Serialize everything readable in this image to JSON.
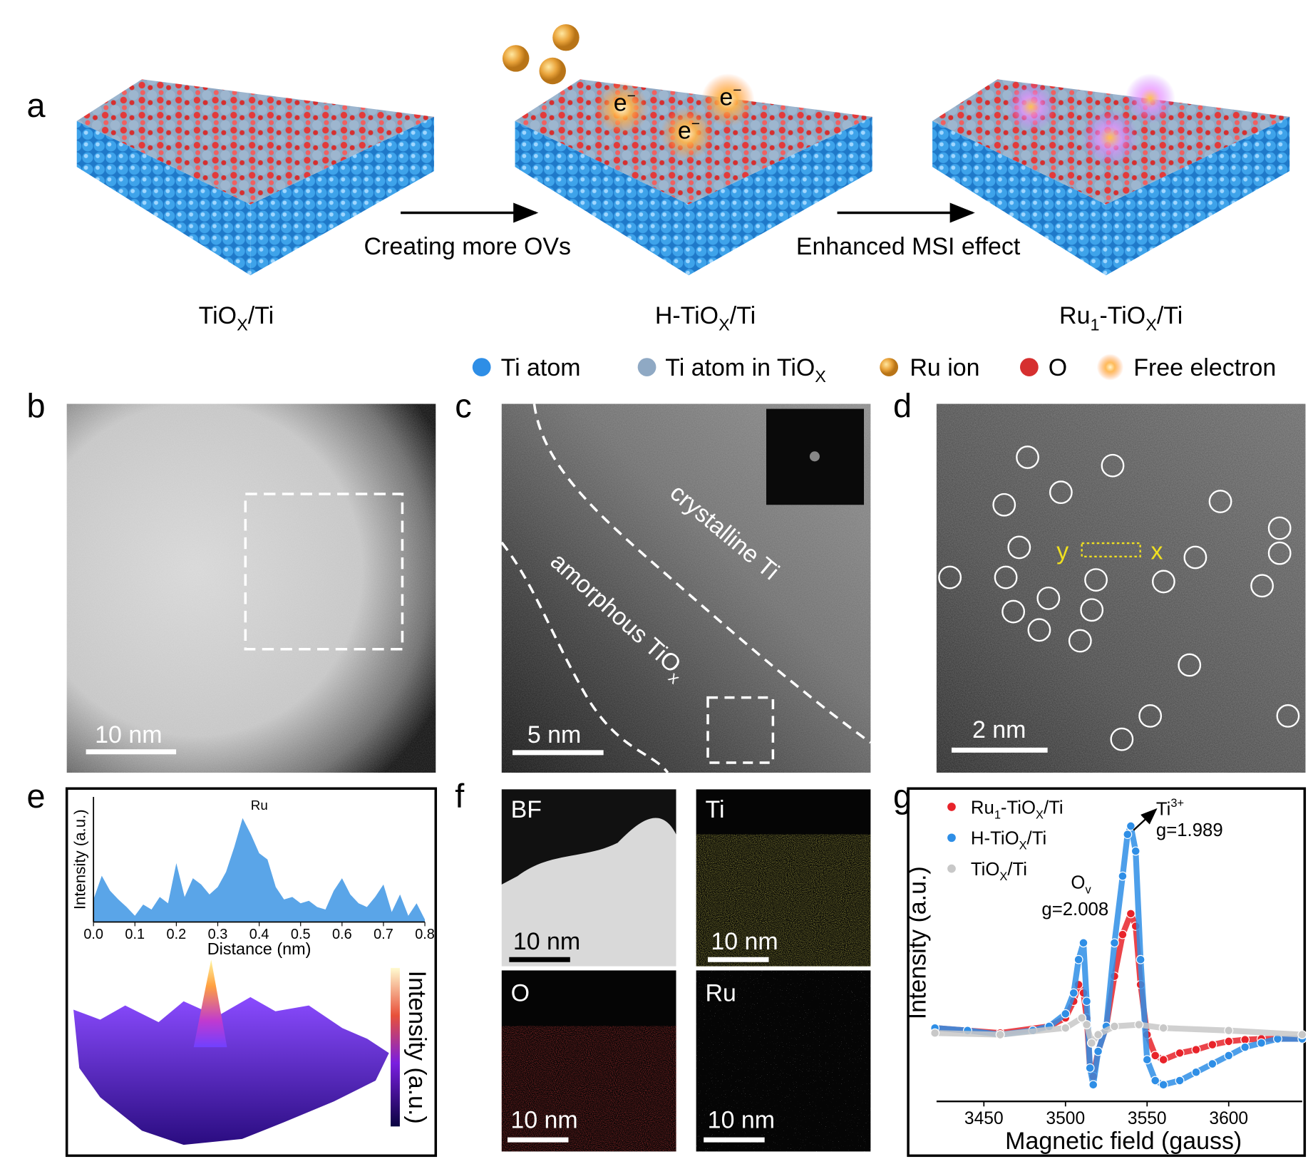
{
  "panel_labels": [
    "a",
    "b",
    "c",
    "d",
    "e",
    "f",
    "g"
  ],
  "panel_a": {
    "stages": [
      [
        "TiO",
        "X",
        "/Ti"
      ],
      [
        "H-TiO",
        "X",
        "/Ti"
      ],
      [
        "Ru",
        "1",
        "-TiO",
        "X",
        "/Ti"
      ]
    ],
    "arrows": [
      "Creating more OVs",
      "Enhanced MSI effect"
    ],
    "electron_labels": [
      [
        "e",
        "−"
      ],
      [
        "e",
        "−"
      ],
      [
        "e",
        "−"
      ]
    ]
  },
  "legend": [
    [
      "Ti atom"
    ],
    [
      "Ti atom in TiO",
      "X"
    ],
    [
      "Ru ion"
    ],
    [
      "O"
    ],
    [
      "Free electron"
    ]
  ],
  "panel_b": {
    "scale_bar": "10 nm"
  },
  "panel_c": {
    "scale_bar": "5 nm",
    "crystalline": "crystalline Ti",
    "amorphous": [
      "amorphous TiO",
      "x"
    ]
  },
  "panel_d": {
    "scale_bar": "2 nm",
    "markers": [
      "y",
      "x"
    ]
  },
  "panel_f": {
    "tiles": [
      {
        "label": "BF",
        "scale_bar": "10 nm"
      },
      {
        "label": "Ti",
        "scale_bar": "10 nm"
      },
      {
        "label": "O",
        "scale_bar": "10 nm"
      },
      {
        "label": "Ru",
        "scale_bar": "10 nm"
      }
    ]
  },
  "chart_data": [
    {
      "type": "area",
      "xlabel": "Distance (nm)",
      "ylabel": "Intensity (a.u.)",
      "annotation": "Ru",
      "colorbar_label": "Intensity (a.u.)",
      "color": "#5aa5e8",
      "xlim": [
        0,
        0.8
      ],
      "ylim": [
        0,
        1
      ],
      "xticks": [
        {
          "value": 0,
          "label": "0.0"
        },
        {
          "value": 0.1,
          "label": "0.1"
        },
        {
          "value": 0.2,
          "label": "0.2"
        },
        {
          "value": 0.3,
          "label": "0.3"
        },
        {
          "value": 0.4,
          "label": "0.4"
        },
        {
          "value": 0.5,
          "label": "0.5"
        },
        {
          "value": 0.6,
          "label": "0.6"
        },
        {
          "value": 0.7,
          "label": "0.7"
        },
        {
          "value": 0.8,
          "label": "0.8"
        }
      ],
      "x": [
        0,
        0.02,
        0.04,
        0.06,
        0.08,
        0.1,
        0.12,
        0.14,
        0.16,
        0.18,
        0.2,
        0.22,
        0.24,
        0.26,
        0.28,
        0.3,
        0.32,
        0.34,
        0.36,
        0.38,
        0.4,
        0.42,
        0.44,
        0.46,
        0.48,
        0.5,
        0.52,
        0.54,
        0.56,
        0.58,
        0.6,
        0.62,
        0.64,
        0.66,
        0.68,
        0.7,
        0.72,
        0.74,
        0.76,
        0.78,
        0.8
      ],
      "values": [
        0.18,
        0.37,
        0.25,
        0.18,
        0.12,
        0.05,
        0.14,
        0.1,
        0.2,
        0.15,
        0.47,
        0.2,
        0.35,
        0.3,
        0.22,
        0.28,
        0.4,
        0.6,
        0.83,
        0.7,
        0.55,
        0.5,
        0.28,
        0.18,
        0.2,
        0.15,
        0.17,
        0.12,
        0.1,
        0.25,
        0.35,
        0.22,
        0.15,
        0.12,
        0.2,
        0.3,
        0.08,
        0.22,
        0.05,
        0.15,
        0.02
      ]
    },
    {
      "type": "scatter",
      "xlabel": "Magnetic field (gauss)",
      "ylabel": "Intensity (a.u.)",
      "xlim": [
        3421,
        3645
      ],
      "ylim": [
        0,
        365
      ],
      "xticks": [
        3450,
        3500,
        3550,
        3600
      ],
      "annotations": {
        "ti": {
          "text": [
            "Ti",
            "3+"
          ],
          "g": "g=1.989"
        },
        "ov": {
          "text": [
            "O",
            "v"
          ],
          "g": "g=2.008"
        }
      },
      "series": [
        {
          "name": [
            "Ru",
            "1",
            "-TiO",
            "X",
            "/Ti"
          ],
          "color": "#e8232a",
          "x": [
            3420,
            3460,
            3490,
            3500,
            3505,
            3508,
            3511,
            3513,
            3515,
            3517,
            3520,
            3525,
            3530,
            3535,
            3540,
            3543,
            3546,
            3550,
            3555,
            3560,
            3570,
            3580,
            3590,
            3600,
            3610,
            3620,
            3645
          ],
          "values": [
            88,
            82,
            90,
            100,
            120,
            140,
            130,
            100,
            40,
            30,
            60,
            90,
            150,
            200,
            225,
            210,
            140,
            80,
            55,
            50,
            58,
            62,
            68,
            72,
            74,
            75,
            75
          ]
        },
        {
          "name": [
            "H-TiO",
            "X",
            "/Ti"
          ],
          "color": "#2e8ee6",
          "x": [
            3420,
            3440,
            3460,
            3480,
            3490,
            3500,
            3505,
            3508,
            3511,
            3513,
            3515,
            3517,
            3520,
            3525,
            3530,
            3535,
            3538,
            3540,
            3543,
            3546,
            3550,
            3555,
            3560,
            3570,
            3580,
            3590,
            3600,
            3610,
            3620,
            3630,
            3645
          ],
          "values": [
            88,
            85,
            80,
            85,
            90,
            105,
            130,
            170,
            190,
            120,
            40,
            20,
            60,
            90,
            190,
            270,
            320,
            330,
            300,
            170,
            50,
            25,
            20,
            25,
            35,
            45,
            55,
            65,
            70,
            75,
            75
          ]
        },
        {
          "name": [
            "TiO",
            "X",
            "/Ti"
          ],
          "color": "#c8c8c8",
          "x": [
            3420,
            3460,
            3500,
            3510,
            3513,
            3516,
            3520,
            3530,
            3545,
            3560,
            3600,
            3645
          ],
          "values": [
            82,
            80,
            88,
            100,
            92,
            70,
            80,
            90,
            92,
            88,
            85,
            80
          ]
        }
      ]
    }
  ]
}
